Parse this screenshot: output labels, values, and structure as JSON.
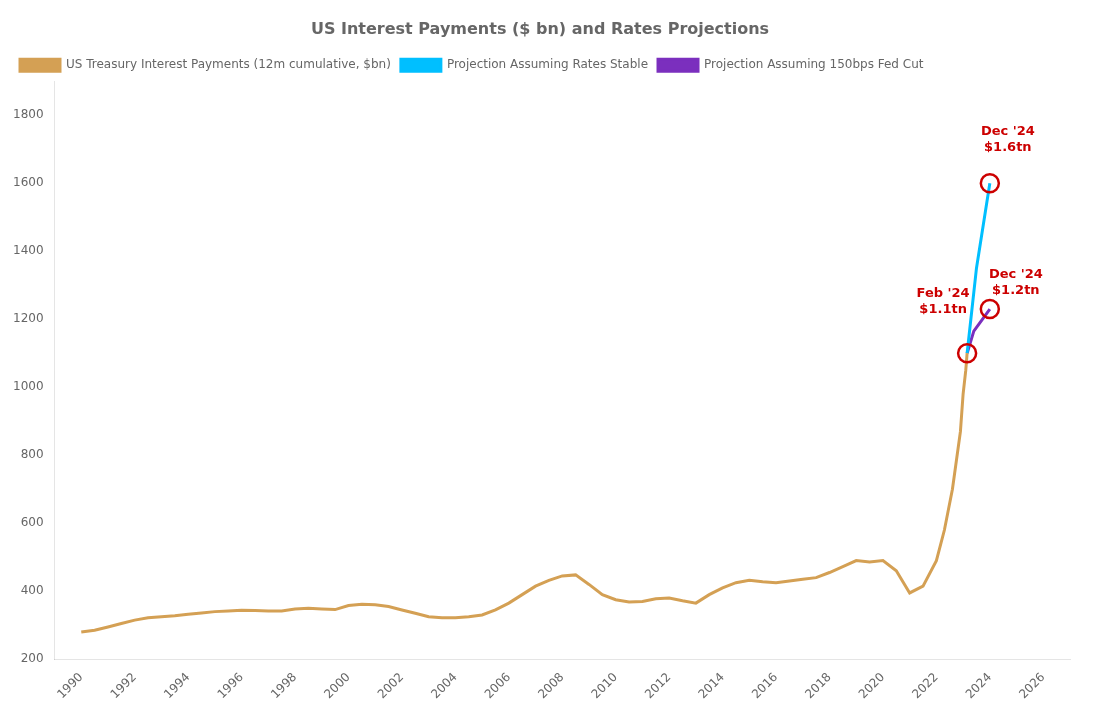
{
  "chart_data": {
    "type": "line",
    "title": "US Interest Payments ($ bn) and Rates Projections",
    "series": [
      {
        "name": "US Treasury Interest Payments (12m cumulative, $bn)",
        "color": "#D4A054",
        "x": [
          1990,
          1990.5,
          1991,
          1991.5,
          1992,
          1992.5,
          1993,
          1993.5,
          1994,
          1994.5,
          1995,
          1995.5,
          1996,
          1996.5,
          1997,
          1997.5,
          1998,
          1998.5,
          1999,
          1999.5,
          2000,
          2000.5,
          2001,
          2001.5,
          2002,
          2002.5,
          2003,
          2003.5,
          2004,
          2004.5,
          2005,
          2005.5,
          2006,
          2006.5,
          2007,
          2007.5,
          2008,
          2008.5,
          2009,
          2009.5,
          2010,
          2010.5,
          2011,
          2011.5,
          2012,
          2012.5,
          2013,
          2013.5,
          2014,
          2014.5,
          2015,
          2015.5,
          2016,
          2016.5,
          2017,
          2017.5,
          2018,
          2018.5,
          2019,
          2019.5,
          2020,
          2020.5,
          2021,
          2021.5,
          2022,
          2022.3,
          2022.6,
          2022.9,
          2023.0,
          2023.1,
          2023.15
        ],
        "values": [
          280,
          285,
          295,
          305,
          315,
          322,
          325,
          328,
          332,
          336,
          340,
          342,
          344,
          343,
          342,
          342,
          348,
          350,
          348,
          346,
          358,
          362,
          360,
          355,
          345,
          335,
          325,
          322,
          322,
          325,
          330,
          345,
          365,
          390,
          415,
          432,
          445,
          448,
          420,
          390,
          375,
          368,
          370,
          378,
          380,
          372,
          365,
          390,
          410,
          425,
          432,
          428,
          425,
          430,
          435,
          440,
          455,
          472,
          490,
          486,
          490,
          460,
          395,
          415,
          490,
          580,
          700,
          870,
          980,
          1050,
          1100
        ]
      },
      {
        "name": "Projection Assuming Rates Stable",
        "color": "#00BFFF",
        "x": [
          2023.15,
          2023.5,
          2024.0
        ],
        "values": [
          1100,
          1350,
          1600
        ]
      },
      {
        "name": "Projection Assuming 150bps Fed Cut",
        "color": "#7B2FBE",
        "x": [
          2023.15,
          2023.4,
          2024.0
        ],
        "values": [
          1100,
          1165,
          1230
        ]
      }
    ],
    "xlim": [
      1989.0,
      2027.0
    ],
    "ylim": [
      200,
      1900
    ],
    "xticks": [
      1990,
      1992,
      1994,
      1996,
      1998,
      2000,
      2002,
      2004,
      2006,
      2008,
      2010,
      2012,
      2014,
      2016,
      2018,
      2020,
      2022,
      2024,
      2026
    ],
    "yticks": [
      200,
      400,
      600,
      800,
      1000,
      1200,
      1400,
      1600,
      1800
    ],
    "grid": false,
    "legend": "upper left",
    "annotations": [
      {
        "text": "Feb '24\n$1.1tn",
        "x": 2023.15,
        "y": 1100,
        "color": "#CC0000",
        "marker": "circle"
      },
      {
        "text": "Dec '24\n$1.6tn",
        "x": 2024.0,
        "y": 1600,
        "color": "#CC0000",
        "marker": "circle"
      },
      {
        "text": "Dec '24\n$1.2tn",
        "x": 2024.0,
        "y": 1230,
        "color": "#CC0000",
        "marker": "circle"
      }
    ]
  }
}
